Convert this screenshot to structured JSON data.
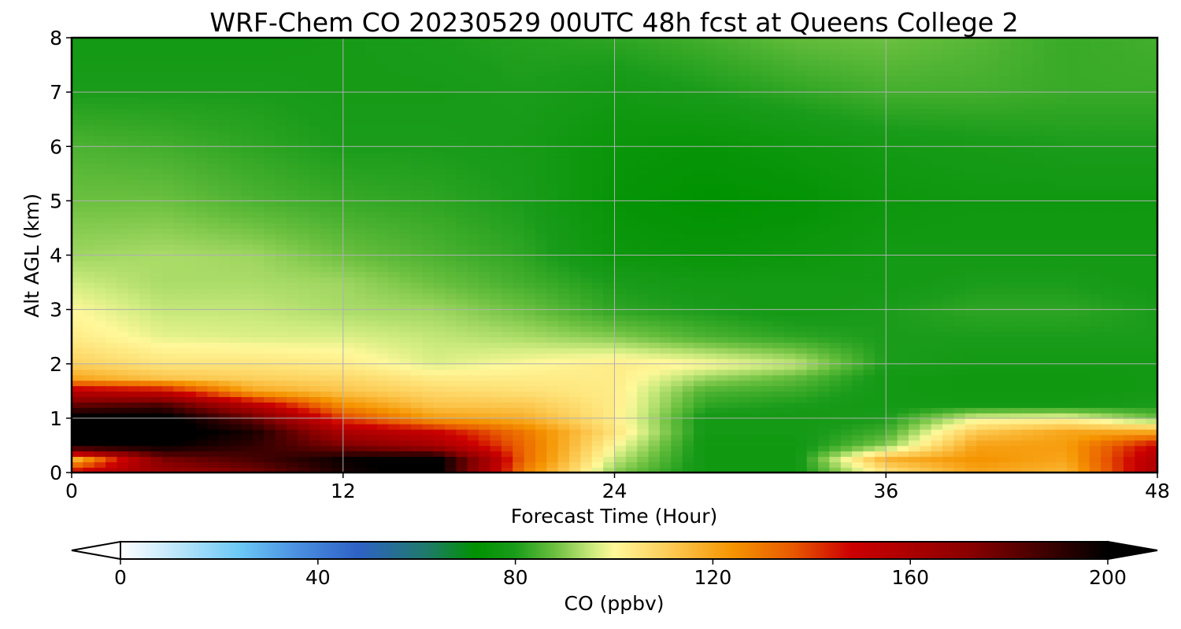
{
  "chart_data": {
    "type": "heatmap",
    "title": "WRF-Chem CO  20230529 00UTC 48h fcst at Queens College 2",
    "xlabel": "Forecast Time (Hour)",
    "ylabel": "Alt AGL (km)",
    "xlim": [
      0,
      48
    ],
    "ylim": [
      0,
      8
    ],
    "xticks": [
      "0",
      "12",
      "24",
      "36",
      "48"
    ],
    "yticks": [
      "0",
      "1",
      "2",
      "3",
      "4",
      "5",
      "6",
      "7",
      "8"
    ],
    "grid": true,
    "x_hours": [
      0,
      4,
      8,
      12,
      16,
      20,
      24,
      28,
      32,
      36,
      40,
      44,
      48
    ],
    "y_km": [
      0,
      0.25,
      0.5,
      0.75,
      1,
      1.25,
      1.5,
      1.75,
      2,
      2.5,
      3,
      3.5,
      4,
      5,
      6,
      7,
      8
    ],
    "values_ppbv": [
      [
        150,
        165,
        175,
        195,
        205,
        128,
        90,
        77,
        77,
        104,
        120,
        116,
        160
      ],
      [
        115,
        175,
        185,
        198,
        205,
        133,
        95,
        77,
        77,
        117,
        124,
        120,
        158
      ],
      [
        200,
        200,
        190,
        175,
        162,
        133,
        100,
        77,
        77,
        90,
        121,
        122,
        150
      ],
      [
        205,
        205,
        195,
        160,
        150,
        130,
        105,
        78,
        78,
        84,
        112,
        120,
        120
      ],
      [
        205,
        205,
        180,
        140,
        122,
        118,
        103,
        78,
        78,
        80,
        98,
        100,
        88
      ],
      [
        180,
        185,
        155,
        125,
        113,
        112,
        103,
        82,
        80,
        78,
        78,
        78,
        80
      ],
      [
        155,
        150,
        120,
        113,
        108,
        106,
        103,
        85,
        83,
        78,
        77,
        77,
        78
      ],
      [
        120,
        113,
        110,
        108,
        103,
        103,
        103,
        92,
        87,
        78,
        77,
        77,
        78
      ],
      [
        110,
        105,
        105,
        103,
        97,
        100,
        103,
        100,
        95,
        80,
        78,
        78,
        78
      ],
      [
        103,
        98,
        97,
        97,
        95,
        93,
        90,
        85,
        82,
        80,
        80,
        80,
        80
      ],
      [
        100,
        95,
        95,
        93,
        92,
        88,
        82,
        80,
        78,
        80,
        82,
        82,
        80
      ],
      [
        96,
        93,
        93,
        92,
        88,
        84,
        80,
        78,
        78,
        78,
        80,
        80,
        78
      ],
      [
        92,
        93,
        92,
        88,
        85,
        82,
        76,
        75,
        76,
        78,
        78,
        78,
        78
      ],
      [
        88,
        88,
        85,
        83,
        82,
        80,
        74,
        72,
        73,
        76,
        77,
        77,
        77
      ],
      [
        85,
        84,
        82,
        80,
        80,
        79,
        75,
        74,
        76,
        78,
        79,
        80,
        80
      ],
      [
        80,
        80,
        80,
        79,
        79,
        80,
        78,
        80,
        82,
        84,
        84,
        83,
        83
      ],
      [
        78,
        78,
        78,
        79,
        80,
        81,
        82,
        84,
        87,
        88,
        86,
        83,
        84
      ]
    ],
    "colorbar": {
      "label": "CO  (ppbv)",
      "min": 0,
      "max": 200,
      "ticks": [
        "0",
        "40",
        "80",
        "120",
        "160",
        "200"
      ],
      "extend": "both",
      "colors": [
        {
          "v": 0,
          "c": "#ffffff"
        },
        {
          "v": 12,
          "c": "#b8e4fa"
        },
        {
          "v": 24,
          "c": "#6cc8f5"
        },
        {
          "v": 36,
          "c": "#4a8fe0"
        },
        {
          "v": 48,
          "c": "#2e62c6"
        },
        {
          "v": 62,
          "c": "#1f7a6a"
        },
        {
          "v": 72,
          "c": "#009200"
        },
        {
          "v": 80,
          "c": "#1a9c1a"
        },
        {
          "v": 88,
          "c": "#6cc040"
        },
        {
          "v": 96,
          "c": "#d0ec80"
        },
        {
          "v": 100,
          "c": "#fff89a"
        },
        {
          "v": 112,
          "c": "#fcc850"
        },
        {
          "v": 124,
          "c": "#f59400"
        },
        {
          "v": 136,
          "c": "#e85a00"
        },
        {
          "v": 148,
          "c": "#cc0000"
        },
        {
          "v": 172,
          "c": "#8a0000"
        },
        {
          "v": 200,
          "c": "#000000"
        }
      ]
    }
  }
}
